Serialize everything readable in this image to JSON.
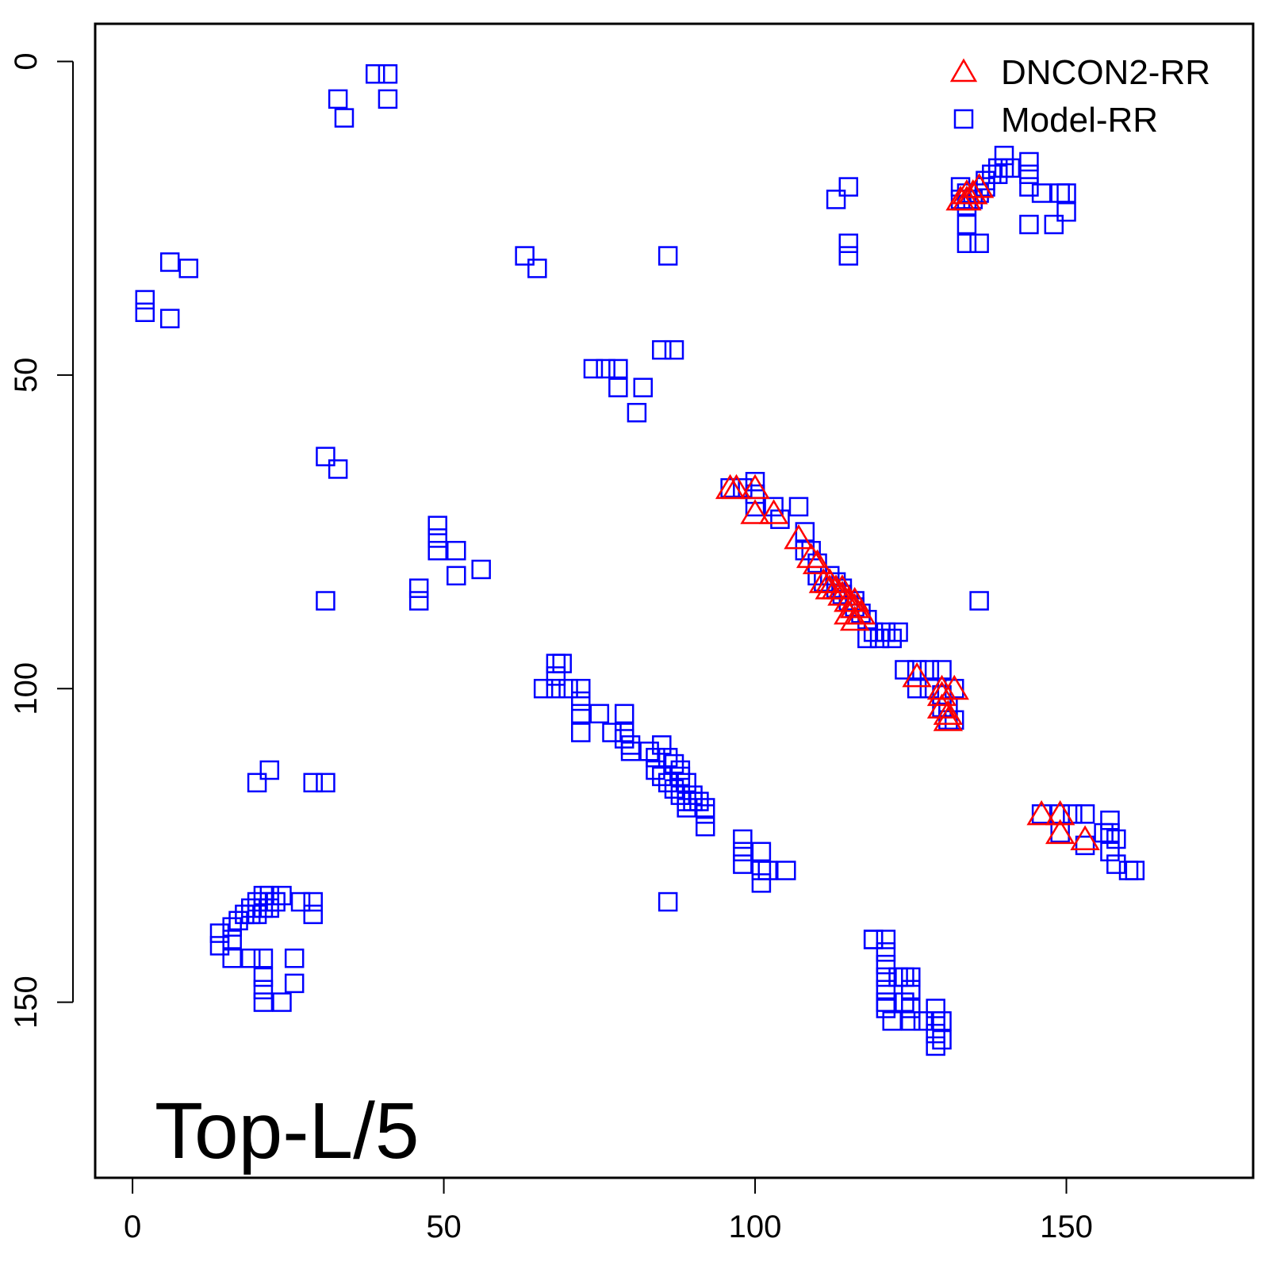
{
  "chart_data": {
    "type": "scatter",
    "annotation": "Top-L/5",
    "xlim": [
      -6,
      180
    ],
    "ylim": [
      -6,
      178
    ],
    "y_reversed": true,
    "x_ticks": [
      "0",
      "50",
      "100",
      "150"
    ],
    "y_ticks": [
      "0",
      "50",
      "100",
      "150"
    ],
    "legend_position": "top-right",
    "legend": [
      {
        "label": "DNCON2-RR",
        "marker": "triangle",
        "color": "#ff0000"
      },
      {
        "label": "Model-RR",
        "marker": "square",
        "color": "#0000ff"
      }
    ],
    "series": [
      {
        "name": "Model-RR",
        "marker": "square",
        "color": "#0000ff",
        "points": [
          [
            2,
            38
          ],
          [
            2,
            40
          ],
          [
            6,
            32
          ],
          [
            6,
            41
          ],
          [
            9,
            33
          ],
          [
            33,
            6
          ],
          [
            34,
            9
          ],
          [
            39,
            2
          ],
          [
            41,
            2
          ],
          [
            41,
            6
          ],
          [
            63,
            31
          ],
          [
            65,
            33
          ],
          [
            86,
            31
          ],
          [
            85,
            46
          ],
          [
            87,
            46
          ],
          [
            74,
            49
          ],
          [
            76,
            49
          ],
          [
            78,
            49
          ],
          [
            78,
            52
          ],
          [
            82,
            52
          ],
          [
            81,
            56
          ],
          [
            31,
            63
          ],
          [
            33,
            65
          ],
          [
            31,
            86
          ],
          [
            46,
            84
          ],
          [
            46,
            86
          ],
          [
            49,
            74
          ],
          [
            49,
            76
          ],
          [
            49,
            78
          ],
          [
            52,
            78
          ],
          [
            52,
            82
          ],
          [
            56,
            81
          ],
          [
            113,
            22
          ],
          [
            115,
            20
          ],
          [
            115,
            29
          ],
          [
            115,
            31
          ],
          [
            133,
            20
          ],
          [
            133,
            22
          ],
          [
            134,
            21
          ],
          [
            134,
            23
          ],
          [
            135,
            22
          ],
          [
            136,
            21
          ],
          [
            137,
            19
          ],
          [
            137,
            20
          ],
          [
            138,
            18
          ],
          [
            139,
            17
          ],
          [
            139,
            18
          ],
          [
            140,
            15
          ],
          [
            140,
            17
          ],
          [
            141,
            17
          ],
          [
            144,
            16
          ],
          [
            144,
            18
          ],
          [
            144,
            20
          ],
          [
            146,
            21
          ],
          [
            149,
            21
          ],
          [
            150,
            21
          ],
          [
            150,
            24
          ],
          [
            144,
            26
          ],
          [
            148,
            26
          ],
          [
            134,
            26
          ],
          [
            134,
            29
          ],
          [
            136,
            29
          ],
          [
            22,
            113
          ],
          [
            20,
            115
          ],
          [
            29,
            115
          ],
          [
            31,
            115
          ],
          [
            96,
            68
          ],
          [
            98,
            68
          ],
          [
            100,
            67
          ],
          [
            100,
            69
          ],
          [
            100,
            71
          ],
          [
            103,
            71
          ],
          [
            104,
            73
          ],
          [
            107,
            71
          ],
          [
            108,
            75
          ],
          [
            108,
            78
          ],
          [
            109,
            78
          ],
          [
            110,
            80
          ],
          [
            110,
            82
          ],
          [
            111,
            83
          ],
          [
            112,
            82
          ],
          [
            113,
            83
          ],
          [
            113,
            84
          ],
          [
            114,
            84
          ],
          [
            114,
            85
          ],
          [
            115,
            86
          ],
          [
            116,
            86
          ],
          [
            116,
            87
          ],
          [
            117,
            88
          ],
          [
            118,
            89
          ],
          [
            119,
            91
          ],
          [
            121,
            91
          ],
          [
            123,
            91
          ],
          [
            118,
            92
          ],
          [
            120,
            92
          ],
          [
            122,
            92
          ],
          [
            124,
            97
          ],
          [
            126,
            97
          ],
          [
            128,
            97
          ],
          [
            130,
            97
          ],
          [
            126,
            100
          ],
          [
            128,
            100
          ],
          [
            130,
            101
          ],
          [
            132,
            100
          ],
          [
            130,
            103
          ],
          [
            131,
            103
          ],
          [
            131,
            105
          ],
          [
            132,
            105
          ],
          [
            136,
            86
          ],
          [
            68,
            96
          ],
          [
            69,
            96
          ],
          [
            68,
            98
          ],
          [
            66,
            100
          ],
          [
            68,
            100
          ],
          [
            70,
            100
          ],
          [
            72,
            100
          ],
          [
            72,
            102
          ],
          [
            72,
            104
          ],
          [
            72,
            107
          ],
          [
            75,
            104
          ],
          [
            77,
            107
          ],
          [
            79,
            104
          ],
          [
            79,
            107
          ],
          [
            79,
            108
          ],
          [
            80,
            109
          ],
          [
            80,
            110
          ],
          [
            83,
            110
          ],
          [
            85,
            109
          ],
          [
            86,
            111
          ],
          [
            87,
            112
          ],
          [
            88,
            113
          ],
          [
            88,
            114
          ],
          [
            89,
            115
          ],
          [
            90,
            117
          ],
          [
            91,
            118
          ],
          [
            92,
            119
          ],
          [
            92,
            120
          ],
          [
            92,
            122
          ],
          [
            84,
            111
          ],
          [
            84,
            113
          ],
          [
            85,
            114
          ],
          [
            86,
            115
          ],
          [
            87,
            116
          ],
          [
            88,
            117
          ],
          [
            89,
            118
          ],
          [
            89,
            119
          ],
          [
            90,
            118
          ],
          [
            98,
            124
          ],
          [
            98,
            126
          ],
          [
            98,
            128
          ],
          [
            101,
            126
          ],
          [
            101,
            129
          ],
          [
            101,
            131
          ],
          [
            102,
            129
          ],
          [
            105,
            129
          ],
          [
            86,
            134
          ],
          [
            146,
            120
          ],
          [
            149,
            120
          ],
          [
            151,
            120
          ],
          [
            153,
            120
          ],
          [
            149,
            123
          ],
          [
            153,
            125
          ],
          [
            157,
            121
          ],
          [
            157,
            123
          ],
          [
            157,
            126
          ],
          [
            158,
            128
          ],
          [
            160,
            129
          ],
          [
            161,
            129
          ],
          [
            158,
            124
          ],
          [
            156,
            123
          ],
          [
            121,
            140
          ],
          [
            121,
            142
          ],
          [
            121,
            144
          ],
          [
            121,
            146
          ],
          [
            121,
            148
          ],
          [
            121,
            150
          ],
          [
            123,
            146
          ],
          [
            124,
            146
          ],
          [
            125,
            146
          ],
          [
            125,
            148
          ],
          [
            124,
            150
          ],
          [
            125,
            151
          ],
          [
            129,
            151
          ],
          [
            121,
            151
          ],
          [
            122,
            153
          ],
          [
            125,
            153
          ],
          [
            127,
            153
          ],
          [
            129,
            153
          ],
          [
            130,
            153
          ],
          [
            129,
            155
          ],
          [
            130,
            156
          ],
          [
            129,
            157
          ],
          [
            119,
            140
          ],
          [
            119,
            140
          ],
          [
            14,
            139
          ],
          [
            16,
            138
          ],
          [
            17,
            137
          ],
          [
            18,
            136
          ],
          [
            19,
            135
          ],
          [
            20,
            134
          ],
          [
            21,
            133
          ],
          [
            22,
            133
          ],
          [
            22,
            134
          ],
          [
            23,
            134
          ],
          [
            24,
            133
          ],
          [
            19,
            136
          ],
          [
            20,
            136
          ],
          [
            21,
            135
          ],
          [
            22,
            135
          ],
          [
            16,
            140
          ],
          [
            16,
            143
          ],
          [
            21,
            143
          ],
          [
            21,
            146
          ],
          [
            21,
            148
          ],
          [
            21,
            150
          ],
          [
            24,
            150
          ],
          [
            26,
            143
          ],
          [
            26,
            147
          ],
          [
            27,
            134
          ],
          [
            29,
            134
          ],
          [
            29,
            136
          ],
          [
            14,
            141
          ],
          [
            19,
            143
          ]
        ]
      },
      {
        "name": "DNCON2-RR",
        "marker": "triangle",
        "color": "#ff0000",
        "points": [
          [
            133,
            22
          ],
          [
            134,
            22
          ],
          [
            134,
            21
          ],
          [
            135,
            21
          ],
          [
            136,
            20
          ],
          [
            96,
            68
          ],
          [
            97,
            68
          ],
          [
            100,
            68
          ],
          [
            100,
            72
          ],
          [
            103,
            72
          ],
          [
            107,
            76
          ],
          [
            109,
            79
          ],
          [
            110,
            80
          ],
          [
            111,
            83
          ],
          [
            112,
            83
          ],
          [
            112,
            84
          ],
          [
            113,
            84
          ],
          [
            114,
            84
          ],
          [
            114,
            85
          ],
          [
            115,
            86
          ],
          [
            116,
            86
          ],
          [
            116,
            87
          ],
          [
            117,
            88
          ],
          [
            115,
            88
          ],
          [
            116,
            89
          ],
          [
            126,
            98
          ],
          [
            130,
            100
          ],
          [
            130,
            101
          ],
          [
            132,
            100
          ],
          [
            130,
            103
          ],
          [
            131,
            104
          ],
          [
            131,
            105
          ],
          [
            146,
            120
          ],
          [
            149,
            120
          ],
          [
            149,
            123
          ],
          [
            153,
            124
          ]
        ]
      }
    ]
  }
}
